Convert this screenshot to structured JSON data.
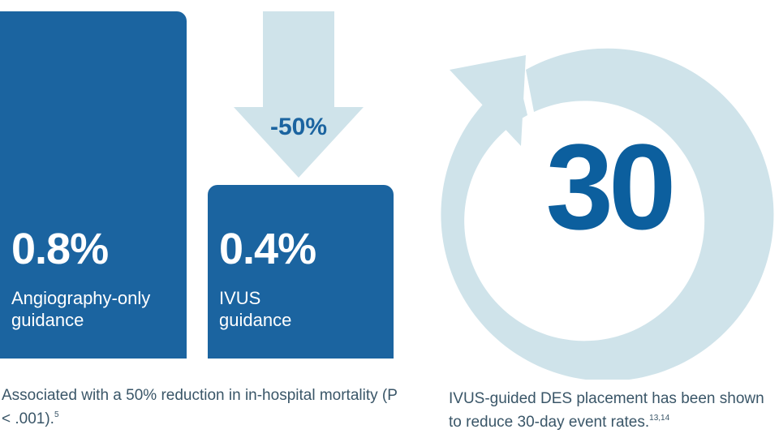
{
  "chart_data": {
    "type": "bar",
    "categories": [
      "Angiography-only guidance",
      "IVUS guidance"
    ],
    "values": [
      0.8,
      0.4
    ],
    "value_labels": [
      "0.8%",
      "0.4%"
    ],
    "label_lines": [
      [
        "Angiography-only",
        "guidance"
      ],
      [
        "IVUS",
        "guidance"
      ]
    ],
    "ylim": [
      0,
      0.8
    ],
    "grid": false,
    "annotation": "-50%"
  },
  "callout": {
    "number": "30"
  },
  "captions": {
    "left_text": "Associated with a 50% reduction in in-hospital mortality (P < .001).",
    "left_sup": "5",
    "right_text": "IVUS-guided DES placement has been shown to reduce 30-day event rates.",
    "right_sup": "13,14"
  },
  "colors": {
    "bar": "#1b64a0",
    "arrow": "#cfe3ea",
    "ring": "#cfe3ea",
    "number": "#0c5f9e",
    "caption": "#3a5668"
  }
}
